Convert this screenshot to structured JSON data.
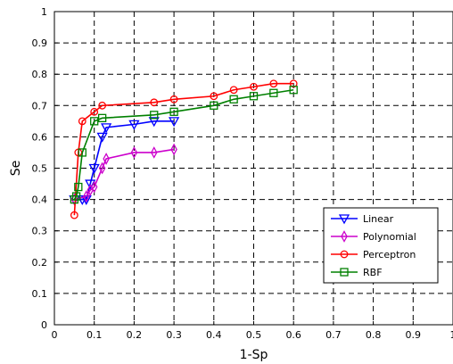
{
  "chart_data": {
    "type": "line",
    "xlabel": "1-Sp",
    "ylabel": "Se",
    "xlim": [
      0,
      1
    ],
    "ylim": [
      0,
      1
    ],
    "xticks": [
      "0",
      "0.1",
      "0.2",
      "0.3",
      "0.4",
      "0.5",
      "0.6",
      "0.7",
      "0.8",
      "0.9",
      "1"
    ],
    "yticks": [
      "0",
      "0.1",
      "0.2",
      "0.3",
      "0.4",
      "0.5",
      "0.6",
      "0.7",
      "0.8",
      "0.9",
      "1"
    ],
    "grid": true,
    "legend_position": "bottom-right",
    "series": [
      {
        "name": "Linear",
        "color": "#0000ff",
        "marker": "triangle-down",
        "x": [
          0.05,
          0.07,
          0.08,
          0.09,
          0.1,
          0.12,
          0.13,
          0.2,
          0.25,
          0.3
        ],
        "y": [
          0.4,
          0.4,
          0.4,
          0.45,
          0.5,
          0.6,
          0.63,
          0.64,
          0.65,
          0.65
        ]
      },
      {
        "name": "Polynomial",
        "color": "#cc00cc",
        "marker": "diamond",
        "x": [
          0.05,
          0.08,
          0.09,
          0.1,
          0.12,
          0.13,
          0.2,
          0.25,
          0.3
        ],
        "y": [
          0.4,
          0.41,
          0.43,
          0.44,
          0.5,
          0.53,
          0.55,
          0.55,
          0.56
        ]
      },
      {
        "name": "Perceptron",
        "color": "#ff0000",
        "marker": "circle",
        "x": [
          0.05,
          0.06,
          0.07,
          0.1,
          0.12,
          0.25,
          0.3,
          0.4,
          0.45,
          0.5,
          0.55,
          0.6
        ],
        "y": [
          0.35,
          0.55,
          0.65,
          0.68,
          0.7,
          0.71,
          0.72,
          0.73,
          0.75,
          0.76,
          0.77,
          0.77
        ]
      },
      {
        "name": "RBF",
        "color": "#008000",
        "marker": "square",
        "x": [
          0.05,
          0.055,
          0.06,
          0.07,
          0.1,
          0.12,
          0.25,
          0.3,
          0.4,
          0.45,
          0.5,
          0.55,
          0.6
        ],
        "y": [
          0.4,
          0.41,
          0.44,
          0.55,
          0.65,
          0.66,
          0.67,
          0.68,
          0.7,
          0.72,
          0.73,
          0.74,
          0.75
        ]
      }
    ]
  }
}
